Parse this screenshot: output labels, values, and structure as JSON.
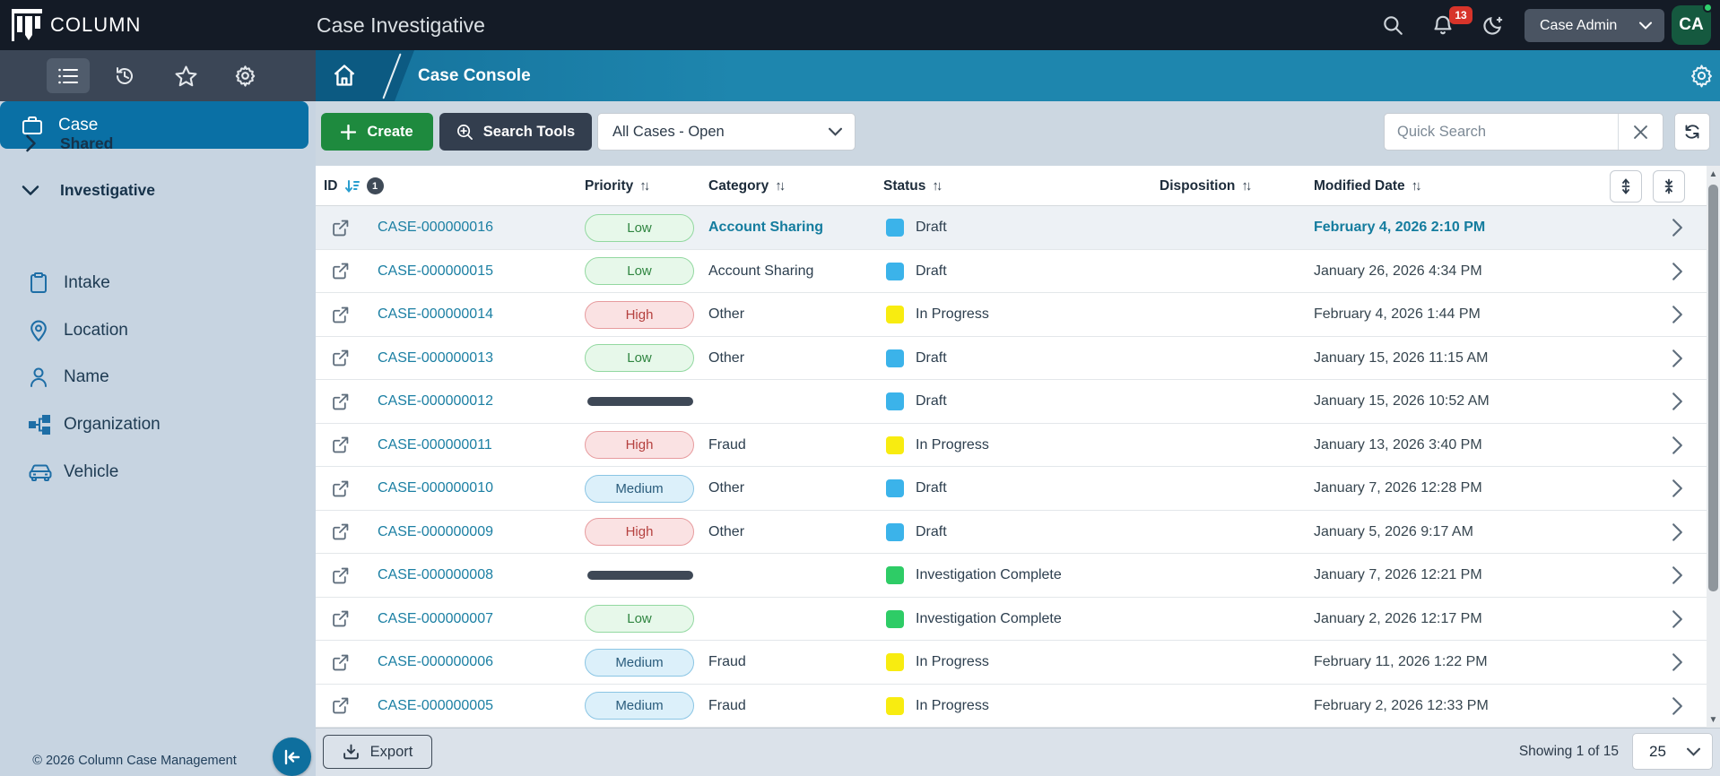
{
  "header": {
    "brand": "COLUMN",
    "title": "Case Investigative",
    "notification_count": "13",
    "user_button_label": "Case Admin",
    "avatar_initials": "CA"
  },
  "breadcrumb": {
    "page": "Case Console"
  },
  "sidebar": {
    "groups": [
      {
        "label": "Shared",
        "expanded": false
      },
      {
        "label": "Investigative",
        "expanded": true
      }
    ],
    "items": [
      {
        "label": "Case",
        "icon": "briefcase-icon",
        "selected": true
      },
      {
        "label": "Intake",
        "icon": "clipboard-icon",
        "selected": false
      },
      {
        "label": "Location",
        "icon": "map-pin-icon",
        "selected": false
      },
      {
        "label": "Name",
        "icon": "person-icon",
        "selected": false
      },
      {
        "label": "Organization",
        "icon": "org-chart-icon",
        "selected": false
      },
      {
        "label": "Vehicle",
        "icon": "car-icon",
        "selected": false
      }
    ],
    "copyright": "© 2026 Column Case Management"
  },
  "toolbar": {
    "create_label": "Create",
    "search_tools_label": "Search Tools",
    "view_select_value": "All Cases - Open",
    "quick_search_placeholder": "Quick Search"
  },
  "table": {
    "columns": [
      "ID",
      "Priority",
      "Category",
      "Status",
      "Disposition",
      "Modified Date"
    ],
    "sort": {
      "column": "ID",
      "direction": "desc",
      "order": "1"
    },
    "rows": [
      {
        "id": "CASE-000000016",
        "priority": "Low",
        "category": "Account Sharing",
        "status": "Draft",
        "disposition": "",
        "modified": "February 4, 2026 2:10 PM",
        "highlight": true,
        "category_as_link": true,
        "modified_as_link": true
      },
      {
        "id": "CASE-000000015",
        "priority": "Low",
        "category": "Account Sharing",
        "status": "Draft",
        "disposition": "",
        "modified": "January 26, 2026 4:34 PM"
      },
      {
        "id": "CASE-000000014",
        "priority": "High",
        "category": "Other",
        "status": "In Progress",
        "disposition": "",
        "modified": "February 4, 2026 1:44 PM"
      },
      {
        "id": "CASE-000000013",
        "priority": "Low",
        "category": "Other",
        "status": "Draft",
        "disposition": "",
        "modified": "January 15, 2026 11:15 AM"
      },
      {
        "id": "CASE-000000012",
        "priority": null,
        "category": "",
        "status": "Draft",
        "disposition": "",
        "modified": "January 15, 2026 10:52 AM"
      },
      {
        "id": "CASE-000000011",
        "priority": "High",
        "category": "Fraud",
        "status": "In Progress",
        "disposition": "",
        "modified": "January 13, 2026 3:40 PM"
      },
      {
        "id": "CASE-000000010",
        "priority": "Medium",
        "category": "Other",
        "status": "Draft",
        "disposition": "",
        "modified": "January 7, 2026 12:28 PM"
      },
      {
        "id": "CASE-000000009",
        "priority": "High",
        "category": "Other",
        "status": "Draft",
        "disposition": "",
        "modified": "January 5, 2026 9:17 AM"
      },
      {
        "id": "CASE-000000008",
        "priority": null,
        "category": "",
        "status": "Investigation Complete",
        "disposition": "",
        "modified": "January 7, 2026 12:21 PM"
      },
      {
        "id": "CASE-000000007",
        "priority": "Low",
        "category": "",
        "status": "Investigation Complete",
        "disposition": "",
        "modified": "January 2, 2026 12:17 PM"
      },
      {
        "id": "CASE-000000006",
        "priority": "Medium",
        "category": "Fraud",
        "status": "In Progress",
        "disposition": "",
        "modified": "February 11, 2026 1:22 PM"
      },
      {
        "id": "CASE-000000005",
        "priority": "Medium",
        "category": "Fraud",
        "status": "In Progress",
        "disposition": "",
        "modified": "February 2, 2026 12:33 PM"
      }
    ]
  },
  "footer": {
    "export_label": "Export",
    "showing_text": "Showing 1 of 15",
    "page_size": "25"
  },
  "colors": {
    "accent_teal": "#0a70a5",
    "breadcrumb_teal": "#1e86ae",
    "create_green": "#1e8a3e",
    "badge_red": "#d7342a",
    "link_teal": "#1b7fa3",
    "status": {
      "Draft": "#3bb3ea",
      "In Progress": "#f8ec10",
      "Investigation Complete": "#2ecc66"
    },
    "priority": {
      "Low": {
        "bg": "#e7f8ea",
        "border": "#92d8a0",
        "text": "#2f8540"
      },
      "Medium": {
        "bg": "#dcf0fa",
        "border": "#8ac5e4",
        "text": "#2a5c7c"
      },
      "High": {
        "bg": "#fae2e3",
        "border": "#e79b9e",
        "text": "#b5413f"
      }
    }
  },
  "icons": {
    "search": "magnifier",
    "notifications": "bell",
    "dark_mode": "crescent-moon",
    "nav": [
      "list",
      "history",
      "star",
      "gear"
    ],
    "breadcrumb_home": "house",
    "settings": "gear",
    "row_open": "external-link",
    "row_nav": "chevron-right",
    "export": "download-tray",
    "refresh": "circular-arrows",
    "collapse_sidebar": "arrow-to-left"
  }
}
